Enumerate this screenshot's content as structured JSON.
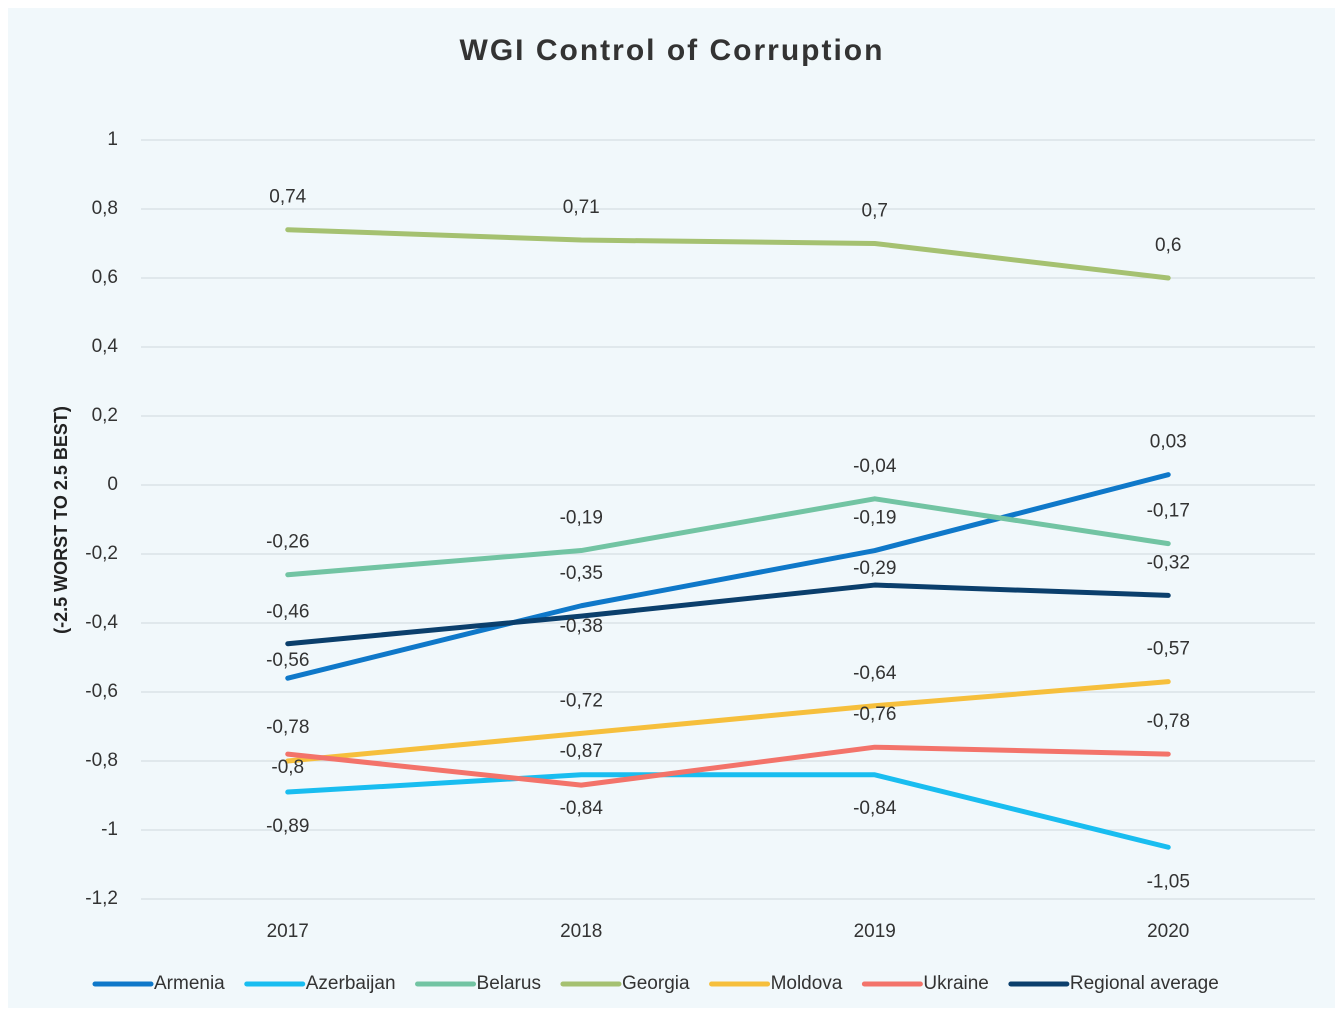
{
  "chart_data": {
    "type": "line",
    "title": "WGI Control of Corruption",
    "y_label": "(-2.5 WORST TO 2.5 BEST)",
    "categories": [
      "2017",
      "2018",
      "2019",
      "2020"
    ],
    "ylim": [
      -1.2,
      1
    ],
    "yticks": [
      {
        "value": -1.2,
        "label": "-1,2"
      },
      -1,
      {
        "value": -0.8,
        "label": "-0,8"
      },
      {
        "value": -0.6,
        "label": "-0,6"
      },
      {
        "value": -0.4,
        "label": "-0,4"
      },
      {
        "value": -0.2,
        "label": "-0,2"
      },
      0,
      {
        "value": 0.2,
        "label": "0,2"
      },
      {
        "value": 0.4,
        "label": "0,4"
      },
      {
        "value": 0.6,
        "label": "0,6"
      },
      {
        "value": 0.8,
        "label": "0,8"
      },
      1
    ],
    "grid": true,
    "legend": "bottom",
    "series": [
      {
        "name": "Armenia",
        "color": "#0f78c9",
        "values": [
          -0.56,
          -0.35,
          -0.19,
          0.03
        ],
        "value_labels": [
          "-0,56",
          "-0,35",
          "-0,19",
          "0,03"
        ]
      },
      {
        "name": "Azerbaijan",
        "color": "#19bdf0",
        "values": [
          -0.89,
          -0.84,
          -0.84,
          -1.05
        ],
        "value_labels": [
          "-0,89",
          "-0,84",
          "-0,84",
          "-1,05"
        ]
      },
      {
        "name": "Belarus",
        "color": "#72c4a3",
        "values": [
          -0.26,
          -0.19,
          -0.04,
          -0.17
        ],
        "value_labels": [
          "-0,26",
          "-0,19",
          "-0,04",
          "-0,17"
        ]
      },
      {
        "name": "Georgia",
        "color": "#a5c171",
        "values": [
          0.74,
          0.71,
          0.7,
          0.6
        ],
        "value_labels": [
          "0,74",
          "0,71",
          "0,7",
          "0,6"
        ]
      },
      {
        "name": "Moldova",
        "color": "#f6bf3c",
        "values": [
          -0.8,
          -0.72,
          -0.64,
          -0.57
        ],
        "value_labels": [
          "-0,8",
          "-0,72",
          "-0,64",
          "-0,57"
        ]
      },
      {
        "name": "Ukraine",
        "color": "#f3736a",
        "values": [
          -0.78,
          -0.87,
          -0.76,
          -0.78
        ],
        "value_labels": [
          "-0,78",
          "-0,87",
          "-0,76",
          "-0,78"
        ]
      },
      {
        "name": "Regional average",
        "color": "#0b3f6c",
        "values": [
          -0.46,
          -0.38,
          -0.29,
          -0.32
        ],
        "value_labels": [
          "-0,46",
          "-0,38",
          "-0,29",
          "-0,32"
        ]
      }
    ]
  }
}
